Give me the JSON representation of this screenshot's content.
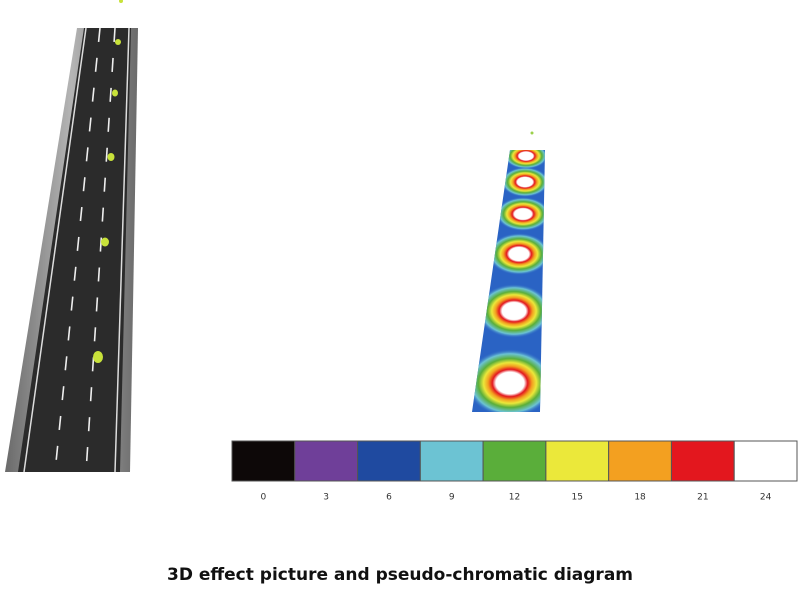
{
  "caption": "3D effect picture and pseudo-chromatic diagram",
  "legend": {
    "items": [
      {
        "label": "0",
        "color": "#0d0808"
      },
      {
        "label": "3",
        "color": "#6f3f99"
      },
      {
        "label": "6",
        "color": "#1f4aa0"
      },
      {
        "label": "9",
        "color": "#6cc3d3"
      },
      {
        "label": "12",
        "color": "#5aae3a"
      },
      {
        "label": "15",
        "color": "#ebe83a"
      },
      {
        "label": "18",
        "color": "#f3a020"
      },
      {
        "label": "21",
        "color": "#e3171e"
      },
      {
        "label": "24",
        "color": "#ffffff"
      }
    ]
  }
}
